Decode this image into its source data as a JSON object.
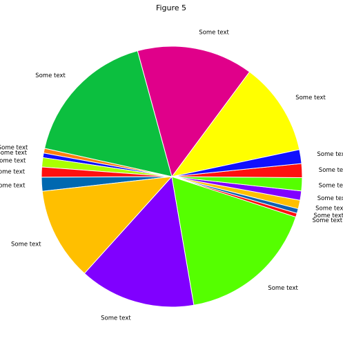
{
  "chart_data": {
    "type": "pie",
    "title": "Figure 5",
    "start_angle_deg": 12,
    "direction": "counterclockwise",
    "slices": [
      {
        "label": "Some text",
        "value": 12.0,
        "color": "#ffff00"
      },
      {
        "label": "Some text",
        "value": 15.0,
        "color": "#e0008a"
      },
      {
        "label": "Some text",
        "value": 18.0,
        "color": "#0cbf3f"
      },
      {
        "label": "Some text",
        "value": 0.6,
        "color": "#ff7f0e"
      },
      {
        "label": "Some text",
        "value": 0.6,
        "color": "#1010ff"
      },
      {
        "label": "Some text",
        "value": 1.2,
        "color": "#aaff00"
      },
      {
        "label": "Some text",
        "value": 1.3,
        "color": "#ff1010"
      },
      {
        "label": "Some text",
        "value": 1.8,
        "color": "#0068b0"
      },
      {
        "label": "Some text",
        "value": 12.0,
        "color": "#ffbf00"
      },
      {
        "label": "Some text",
        "value": 15.0,
        "color": "#8000ff"
      },
      {
        "label": "Some text",
        "value": 18.0,
        "color": "#55ff00"
      },
      {
        "label": "Some text",
        "value": 0.5,
        "color": "#ff1010"
      },
      {
        "label": "Some text",
        "value": 0.6,
        "color": "#1060b0"
      },
      {
        "label": "Some text",
        "value": 1.1,
        "color": "#ffbf00"
      },
      {
        "label": "Some text",
        "value": 1.2,
        "color": "#8000ff"
      },
      {
        "label": "Some text",
        "value": 1.7,
        "color": "#55ff00"
      },
      {
        "label": "Some text",
        "value": 1.8,
        "color": "#ff1010"
      },
      {
        "label": "Some text",
        "value": 1.8,
        "color": "#1010ff"
      }
    ]
  }
}
